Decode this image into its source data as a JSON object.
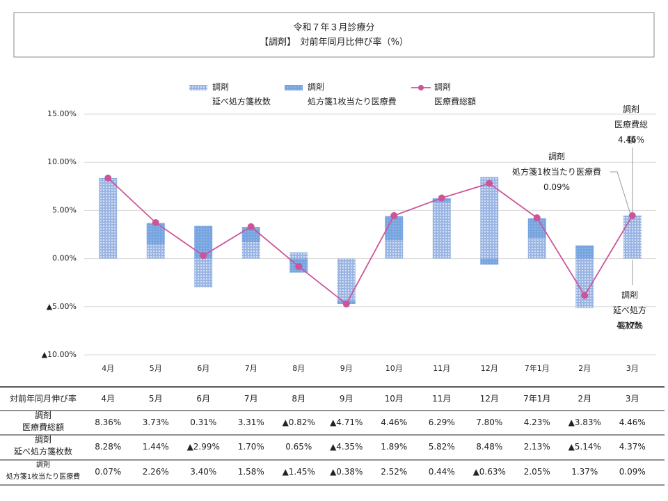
{
  "chart_data": {
    "type": "bar",
    "title": "令和７年３月診療分",
    "subtitle": "【調剤】　対前年同月比伸び率（%）",
    "categories": [
      "4月",
      "5月",
      "6月",
      "7月",
      "8月",
      "9月",
      "10月",
      "11月",
      "12月",
      "7年1月",
      "2月",
      "3月"
    ],
    "series": [
      {
        "name": "調剤\n延べ処方箋枚数",
        "type": "bar",
        "color": "#9ab5e4",
        "values": [
          8.28,
          1.44,
          -2.99,
          1.7,
          0.65,
          -4.35,
          1.89,
          5.82,
          8.48,
          2.13,
          -5.14,
          4.37
        ],
        "value_labels": [
          "8.28%",
          "1.44%",
          "▲2.99%",
          "1.70%",
          "0.65%",
          "▲4.35%",
          "1.89%",
          "5.82%",
          "8.48%",
          "2.13%",
          "▲5.14%",
          "4.37%"
        ]
      },
      {
        "name": "調剤\n処方箋1枚当たり医療費",
        "type": "bar",
        "color": "#76a4e0",
        "values": [
          0.07,
          2.26,
          3.4,
          1.58,
          -1.45,
          -0.38,
          2.52,
          0.44,
          -0.63,
          2.05,
          1.37,
          0.09
        ],
        "value_labels": [
          "0.07%",
          "2.26%",
          "3.40%",
          "1.58%",
          "▲1.45%",
          "▲0.38%",
          "2.52%",
          "0.44%",
          "▲0.63%",
          "2.05%",
          "1.37%",
          "0.09%"
        ]
      },
      {
        "name": "調剤\n医療費総額",
        "type": "line",
        "color": "#cc5599",
        "values": [
          8.36,
          3.73,
          0.31,
          3.31,
          -0.82,
          -4.71,
          4.46,
          6.29,
          7.8,
          4.23,
          -3.83,
          4.46
        ],
        "value_labels": [
          "8.36%",
          "3.73%",
          "0.31%",
          "3.31%",
          "▲0.82%",
          "▲4.71%",
          "4.46%",
          "6.29%",
          "7.80%",
          "4.23%",
          "▲3.83%",
          "4.46%"
        ]
      }
    ],
    "ylim": [
      -10,
      15
    ],
    "yticks": [
      {
        "value": -10,
        "label": "▲10.00%"
      },
      {
        "value": -5,
        "label": "▲5.00%"
      },
      {
        "value": 0,
        "label": "0.00%"
      },
      {
        "value": 5,
        "label": "5.00%"
      },
      {
        "value": 10,
        "label": "10.00%"
      },
      {
        "value": 15,
        "label": "15.00%"
      }
    ],
    "grid": true
  },
  "table": {
    "header": "対前年同月伸び率"
  }
}
